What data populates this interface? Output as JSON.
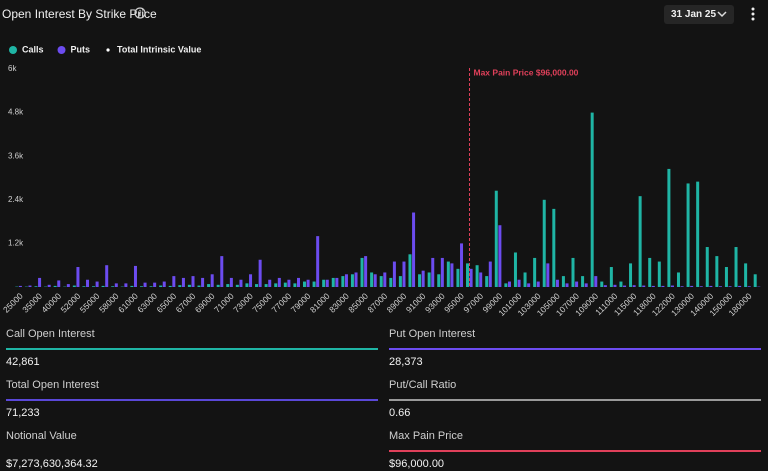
{
  "header": {
    "title": "Open Interest By Strike Price",
    "date": "31 Jan 25"
  },
  "chart_data": {
    "type": "bar",
    "categories": [
      25000,
      null,
      35000,
      null,
      40000,
      null,
      52000,
      null,
      55000,
      null,
      58000,
      null,
      61000,
      null,
      63000,
      null,
      65000,
      null,
      67000,
      null,
      69000,
      null,
      71000,
      null,
      73000,
      null,
      75000,
      null,
      77000,
      null,
      79000,
      null,
      81000,
      null,
      83000,
      null,
      85000,
      null,
      87000,
      null,
      89000,
      null,
      91000,
      null,
      93000,
      null,
      95000,
      null,
      97000,
      null,
      99000,
      null,
      101000,
      null,
      103000,
      null,
      105000,
      null,
      107000,
      null,
      109000,
      null,
      111000,
      null,
      115000,
      null,
      118000,
      null,
      122000,
      null,
      130000,
      null,
      140000,
      null,
      150000,
      null,
      180000,
      null
    ],
    "series": [
      {
        "name": "Calls",
        "color": "#1fb5a5",
        "values": [
          10,
          10,
          20,
          10,
          30,
          10,
          40,
          20,
          20,
          30,
          20,
          10,
          30,
          20,
          20,
          40,
          30,
          50,
          60,
          40,
          80,
          60,
          80,
          60,
          100,
          80,
          80,
          100,
          120,
          100,
          150,
          150,
          200,
          250,
          300,
          350,
          800,
          400,
          300,
          250,
          300,
          900,
          350,
          400,
          350,
          700,
          500,
          650,
          600,
          300,
          2650,
          100,
          950,
          400,
          800,
          2400,
          2150,
          300,
          800,
          300,
          4800,
          150,
          550,
          150,
          650,
          2500,
          800,
          700,
          3250,
          400,
          2850,
          2900,
          1100,
          850,
          550,
          1100,
          650,
          350
        ]
      },
      {
        "name": "Puts",
        "color": "#6c4cf0",
        "values": [
          30,
          40,
          250,
          60,
          180,
          80,
          550,
          200,
          150,
          600,
          100,
          100,
          580,
          120,
          120,
          150,
          300,
          250,
          300,
          250,
          350,
          850,
          250,
          200,
          350,
          750,
          200,
          250,
          200,
          250,
          200,
          1400,
          200,
          250,
          350,
          400,
          850,
          350,
          400,
          700,
          700,
          2050,
          450,
          800,
          800,
          650,
          1200,
          500,
          400,
          700,
          1700,
          150,
          200,
          100,
          150,
          650,
          200,
          100,
          150,
          100,
          300,
          50,
          60,
          40,
          50,
          40,
          30,
          30,
          40,
          20,
          30,
          20,
          30,
          20,
          20,
          30,
          20,
          10
        ]
      },
      {
        "name": "Total Intrinsic Value",
        "color": "#ffffff",
        "values": [
          null,
          null,
          null,
          null,
          null,
          null,
          null,
          null,
          null,
          null,
          null,
          null,
          null,
          null,
          null,
          null,
          null,
          null,
          null,
          null,
          null,
          null,
          null,
          null,
          null,
          null,
          null,
          null,
          null,
          null,
          null,
          null,
          null,
          null,
          null,
          null,
          null,
          null,
          null,
          null,
          null,
          null,
          null,
          null,
          null,
          null,
          null,
          null,
          null,
          null,
          null,
          null,
          null,
          null,
          null,
          null,
          null,
          null,
          null,
          null,
          null,
          null,
          null,
          null,
          null,
          null,
          null,
          null,
          null,
          null,
          null,
          null,
          null,
          null,
          null,
          null,
          null,
          null
        ]
      }
    ],
    "ylim": [
      0,
      6000
    ],
    "yticks": [
      {
        "value": 1200,
        "label": "1.2k"
      },
      {
        "value": 2400,
        "label": "2.4k"
      },
      {
        "value": 3600,
        "label": "3.6k"
      },
      {
        "value": 4800,
        "label": "4.8k"
      },
      {
        "value": 6000,
        "label": "6k"
      }
    ],
    "grid": false,
    "max_pain": {
      "label": "Max Pain Price $96,000.00",
      "strike": 96000,
      "color": "#e0405a"
    }
  },
  "stats": [
    {
      "label": "Call Open Interest",
      "value": "42,861",
      "color": "#1fb5a5"
    },
    {
      "label": "Put Open Interest",
      "value": "28,373",
      "color": "#6c4cf0"
    },
    {
      "label": "Total Open Interest",
      "value": "71,233",
      "color": "#5a48d8"
    },
    {
      "label": "Put/Call Ratio",
      "value": "0.66",
      "color": "#9a9a9a"
    },
    {
      "label": "Notional Value",
      "value": "$7,273,630,364.32"
    },
    {
      "label": "Max Pain Price",
      "value": "$96,000.00",
      "color": "#e0405a"
    }
  ]
}
